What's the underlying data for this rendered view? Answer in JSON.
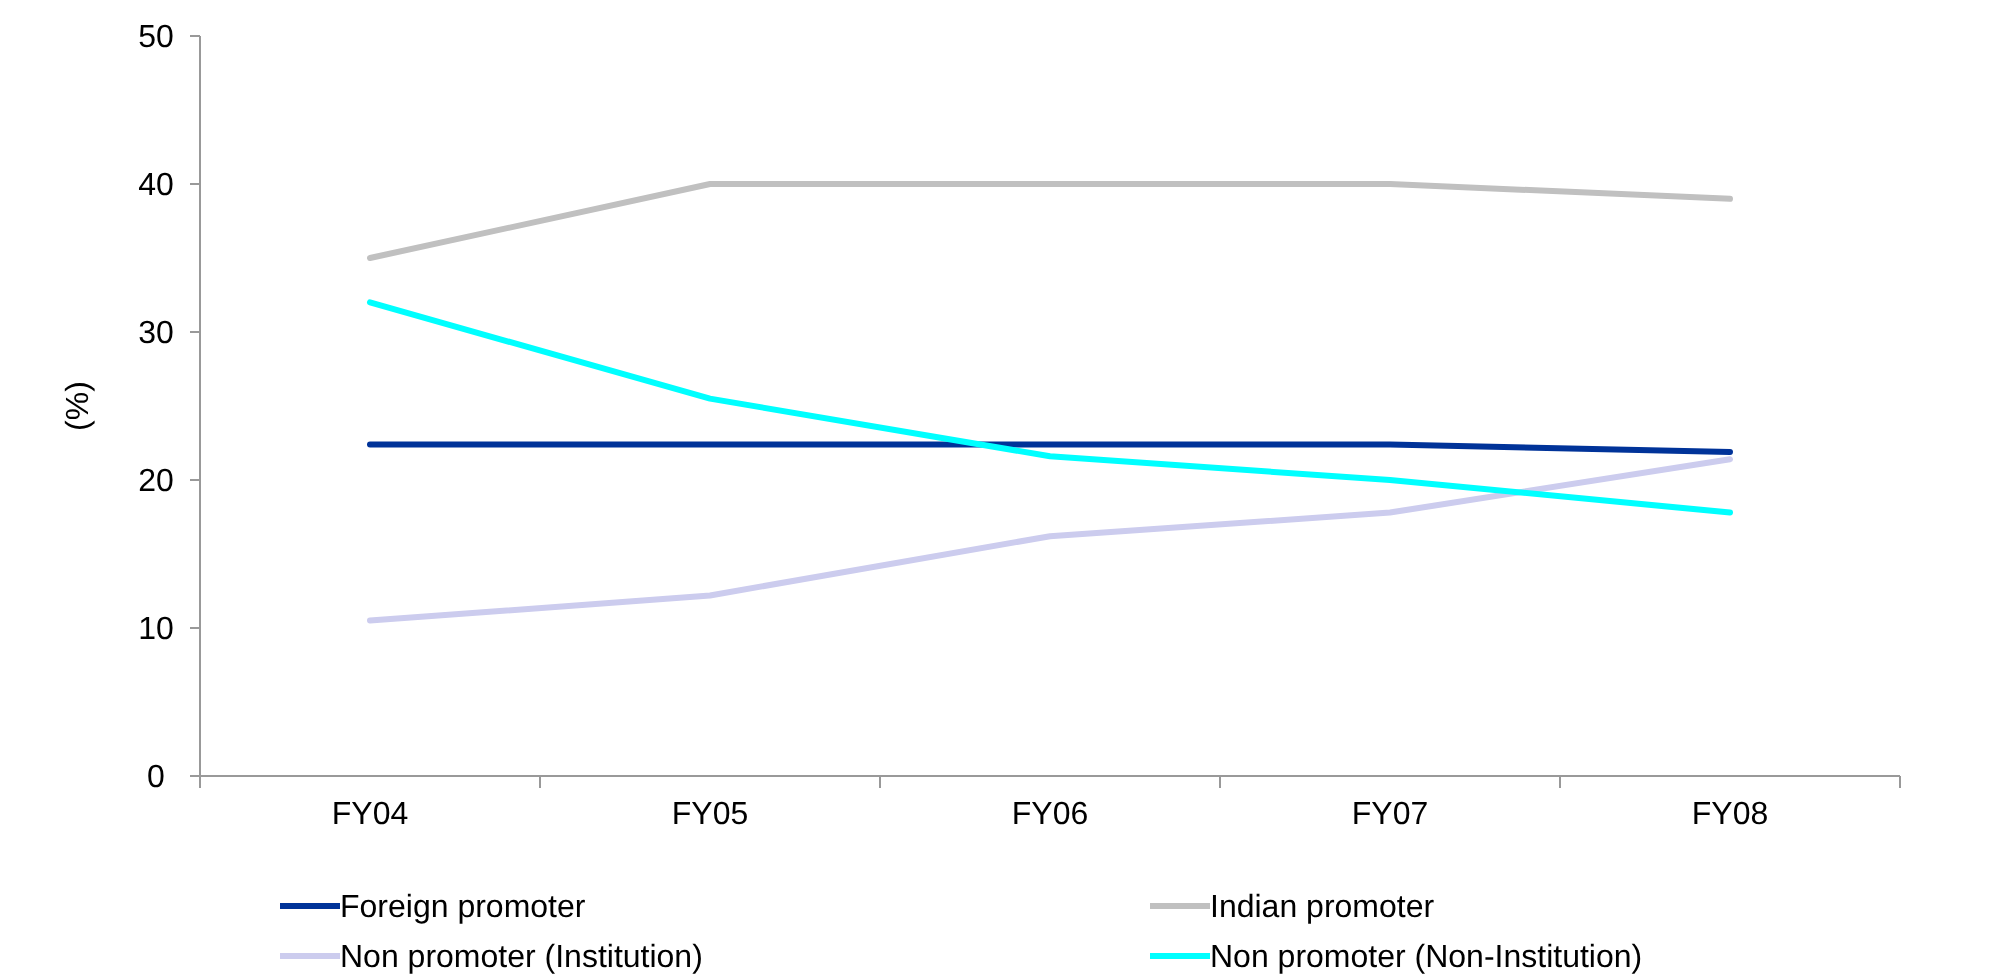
{
  "chart_data": {
    "type": "line",
    "ylabel": "(%)",
    "categories": [
      "FY04",
      "FY05",
      "FY06",
      "FY07",
      "FY08"
    ],
    "series": [
      {
        "name": "Foreign promoter",
        "color": "#003399",
        "values": [
          22.4,
          22.4,
          22.4,
          22.4,
          21.9
        ]
      },
      {
        "name": "Indian promoter",
        "color": "#c0c0c0",
        "values": [
          35,
          40,
          40,
          40,
          39
        ]
      },
      {
        "name": "Non promoter (Institution)",
        "color": "#ccccee",
        "values": [
          10.5,
          12.2,
          16.2,
          17.8,
          21.4
        ]
      },
      {
        "name": "Non promoter (Non-Institution)",
        "color": "#00ffff",
        "values": [
          32,
          25.5,
          21.6,
          20,
          17.8
        ]
      }
    ],
    "ylim": [
      0,
      50
    ],
    "yticks": [
      0,
      10,
      20,
      30,
      40,
      50
    ],
    "grid": false,
    "legend": "bottom",
    "marker": "none",
    "line_style": "solid"
  }
}
